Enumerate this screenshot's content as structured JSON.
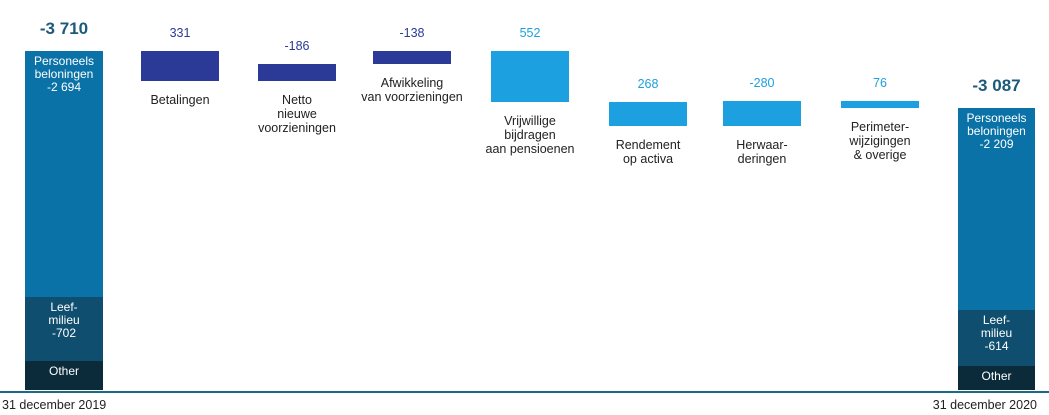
{
  "chart_data": {
    "type": "waterfall",
    "ylim": [
      -4000,
      0
    ],
    "start": {
      "category": "31 december 2019",
      "total": -3710,
      "total_label": "-3 710",
      "segments": [
        {
          "name": "Other",
          "value": -314,
          "color": "#0b2b3b"
        },
        {
          "name": "Leef-\nmilieu",
          "value": -702,
          "color": "#0f4e6e"
        },
        {
          "name": "Personeels\nbeloningen",
          "value": -2694,
          "value_label": "-2 694",
          "color": "#0a72a6"
        }
      ]
    },
    "steps": {
      "categories": [
        "Betalingen",
        "Netto\nnieuwe\nvoorzieningen",
        "Afwikkeling\nvan voorzieningen",
        "Vrijwillige\nbijdragen\naan pensioenen",
        "Rendement\nop activa",
        "Herwaar-\nderingen",
        "Perimeter-\nwijzigingen\n& overige"
      ],
      "values": [
        331,
        -186,
        -138,
        552,
        268,
        -280,
        76
      ],
      "colors": [
        "#2b3a96",
        "#2b3a96",
        "#2b3a96",
        "#1ca0e0",
        "#1ca0e0",
        "#1ca0e0",
        "#1ca0e0"
      ]
    },
    "end": {
      "category": "31 december 2020",
      "total": -3087,
      "total_label": "-3 087",
      "segments": [
        {
          "name": "Other",
          "value": -264,
          "color": "#0b2b3b"
        },
        {
          "name": "Leef-\nmilieu",
          "value": -614,
          "color": "#0f4e6e"
        },
        {
          "name": "Personeels\nbeloningen",
          "value": -2209,
          "value_label": "-2 209",
          "color": "#0a72a6"
        }
      ]
    }
  }
}
